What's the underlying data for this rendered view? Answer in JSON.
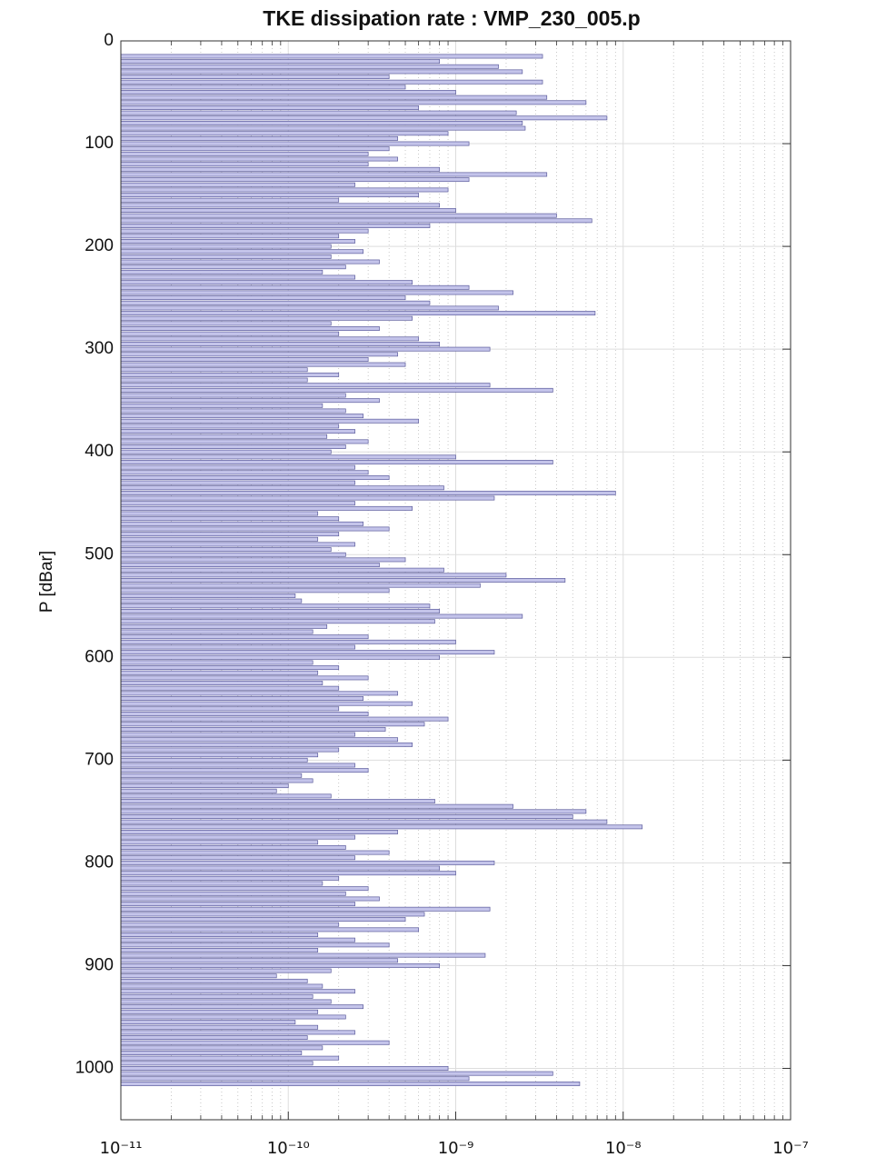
{
  "chart_data": {
    "type": "hbar",
    "title": "TKE dissipation rate : VMP_230_005.p",
    "ylabel": "P [dBar]",
    "color": "#c4c4ea",
    "edgecolor": "#5c5c9c",
    "xscale": "log",
    "grid": true,
    "yinverted": true,
    "xlim": [
      1e-11,
      1e-07
    ],
    "xticks": [
      {
        "value": 1e-11,
        "label": "10⁻¹¹"
      },
      {
        "value": 1e-10,
        "label": "10⁻¹⁰"
      },
      {
        "value": 1e-09,
        "label": "10⁻⁹"
      },
      {
        "value": 1e-08,
        "label": "10⁻⁸"
      },
      {
        "value": 1e-07,
        "label": "10⁻⁷"
      }
    ],
    "ylim": [
      0,
      1050
    ],
    "yticks": [
      0,
      100,
      200,
      300,
      400,
      500,
      600,
      700,
      800,
      900,
      1000
    ],
    "y": [
      15,
      20,
      25,
      30,
      35,
      40,
      45,
      50,
      55,
      60,
      65,
      70,
      75,
      80,
      85,
      90,
      95,
      100,
      105,
      110,
      115,
      120,
      125,
      130,
      135,
      140,
      145,
      150,
      155,
      160,
      165,
      170,
      175,
      180,
      185,
      190,
      195,
      200,
      205,
      210,
      215,
      220,
      225,
      230,
      235,
      240,
      245,
      250,
      255,
      260,
      265,
      270,
      275,
      280,
      285,
      290,
      295,
      300,
      305,
      310,
      315,
      320,
      325,
      330,
      335,
      340,
      345,
      350,
      355,
      360,
      365,
      370,
      375,
      380,
      385,
      390,
      395,
      400,
      405,
      410,
      415,
      420,
      425,
      430,
      435,
      440,
      445,
      450,
      455,
      460,
      465,
      470,
      475,
      480,
      485,
      490,
      495,
      500,
      505,
      510,
      515,
      520,
      525,
      530,
      535,
      540,
      545,
      550,
      555,
      560,
      565,
      570,
      575,
      580,
      585,
      590,
      595,
      600,
      605,
      610,
      615,
      620,
      625,
      630,
      635,
      640,
      645,
      650,
      655,
      660,
      665,
      670,
      675,
      680,
      685,
      690,
      695,
      700,
      705,
      710,
      715,
      720,
      725,
      730,
      735,
      740,
      745,
      750,
      755,
      760,
      765,
      770,
      775,
      780,
      785,
      790,
      795,
      800,
      805,
      810,
      815,
      820,
      825,
      830,
      835,
      840,
      845,
      850,
      855,
      860,
      865,
      870,
      875,
      880,
      885,
      890,
      895,
      900,
      905,
      910,
      915,
      920,
      925,
      930,
      935,
      940,
      945,
      950,
      955,
      960,
      965,
      970,
      975,
      980,
      985,
      990,
      995,
      1000,
      1005,
      1010,
      1015
    ],
    "values": [
      3.3e-09,
      8e-10,
      1.8e-09,
      2.5e-09,
      4e-10,
      3.3e-09,
      5e-10,
      1e-09,
      3.5e-09,
      6e-09,
      6e-10,
      2.3e-09,
      8e-09,
      2.5e-09,
      2.6e-09,
      9e-10,
      4.5e-10,
      1.2e-09,
      4e-10,
      3e-10,
      4.5e-10,
      3e-10,
      8e-10,
      3.5e-09,
      1.2e-09,
      2.5e-10,
      9e-10,
      6e-10,
      2e-10,
      8e-10,
      1e-09,
      4e-09,
      6.5e-09,
      7e-10,
      3e-10,
      2e-10,
      2.5e-10,
      1.8e-10,
      2.8e-10,
      1.8e-10,
      3.5e-10,
      2.2e-10,
      1.6e-10,
      2.5e-10,
      5.5e-10,
      1.2e-09,
      2.2e-09,
      5e-10,
      7e-10,
      1.8e-09,
      6.8e-09,
      5.5e-10,
      1.8e-10,
      3.5e-10,
      2e-10,
      6e-10,
      8e-10,
      1.6e-09,
      4.5e-10,
      3e-10,
      5e-10,
      1.3e-10,
      2e-10,
      1.3e-10,
      1.6e-09,
      3.8e-09,
      2.2e-10,
      3.5e-10,
      1.6e-10,
      2.2e-10,
      2.8e-10,
      6e-10,
      2e-10,
      2.5e-10,
      1.7e-10,
      3e-10,
      2.2e-10,
      1.8e-10,
      1e-09,
      3.8e-09,
      2.5e-10,
      3e-10,
      4e-10,
      2.5e-10,
      8.5e-10,
      9e-09,
      1.7e-09,
      2.5e-10,
      5.5e-10,
      1.5e-10,
      2e-10,
      2.8e-10,
      4e-10,
      2e-10,
      1.5e-10,
      2.5e-10,
      1.8e-10,
      2.2e-10,
      5e-10,
      3.5e-10,
      8.5e-10,
      2e-09,
      4.5e-09,
      1.4e-09,
      4e-10,
      1.1e-10,
      1.2e-10,
      7e-10,
      8e-10,
      2.5e-09,
      7.5e-10,
      1.7e-10,
      1.4e-10,
      3e-10,
      1e-09,
      2.5e-10,
      1.7e-09,
      8e-10,
      1.4e-10,
      2e-10,
      1.5e-10,
      3e-10,
      1.6e-10,
      2e-10,
      4.5e-10,
      2.8e-10,
      5.5e-10,
      2e-10,
      3e-10,
      9e-10,
      6.5e-10,
      3.8e-10,
      2.5e-10,
      4.5e-10,
      5.5e-10,
      2e-10,
      1.5e-10,
      1.3e-10,
      2.5e-10,
      3e-10,
      1.2e-10,
      1.4e-10,
      1e-10,
      8.5e-11,
      1.8e-10,
      7.5e-10,
      2.2e-09,
      6e-09,
      5e-09,
      8e-09,
      1.3e-08,
      4.5e-10,
      2.5e-10,
      1.5e-10,
      2.2e-10,
      4e-10,
      2.5e-10,
      1.7e-09,
      8e-10,
      1e-09,
      2e-10,
      1.6e-10,
      3e-10,
      2.2e-10,
      3.5e-10,
      2.5e-10,
      1.6e-09,
      6.5e-10,
      5e-10,
      2e-10,
      6e-10,
      1.5e-10,
      2.5e-10,
      4e-10,
      1.5e-10,
      1.5e-09,
      4.5e-10,
      8e-10,
      1.8e-10,
      8.5e-11,
      1.3e-10,
      1.6e-10,
      2.5e-10,
      1.4e-10,
      1.8e-10,
      2.8e-10,
      1.5e-10,
      2.2e-10,
      1.1e-10,
      1.5e-10,
      2.5e-10,
      1.3e-10,
      4e-10,
      1.6e-10,
      1.2e-10,
      2e-10,
      1.4e-10,
      9e-10,
      3.8e-09,
      1.2e-09,
      5.5e-09
    ]
  }
}
